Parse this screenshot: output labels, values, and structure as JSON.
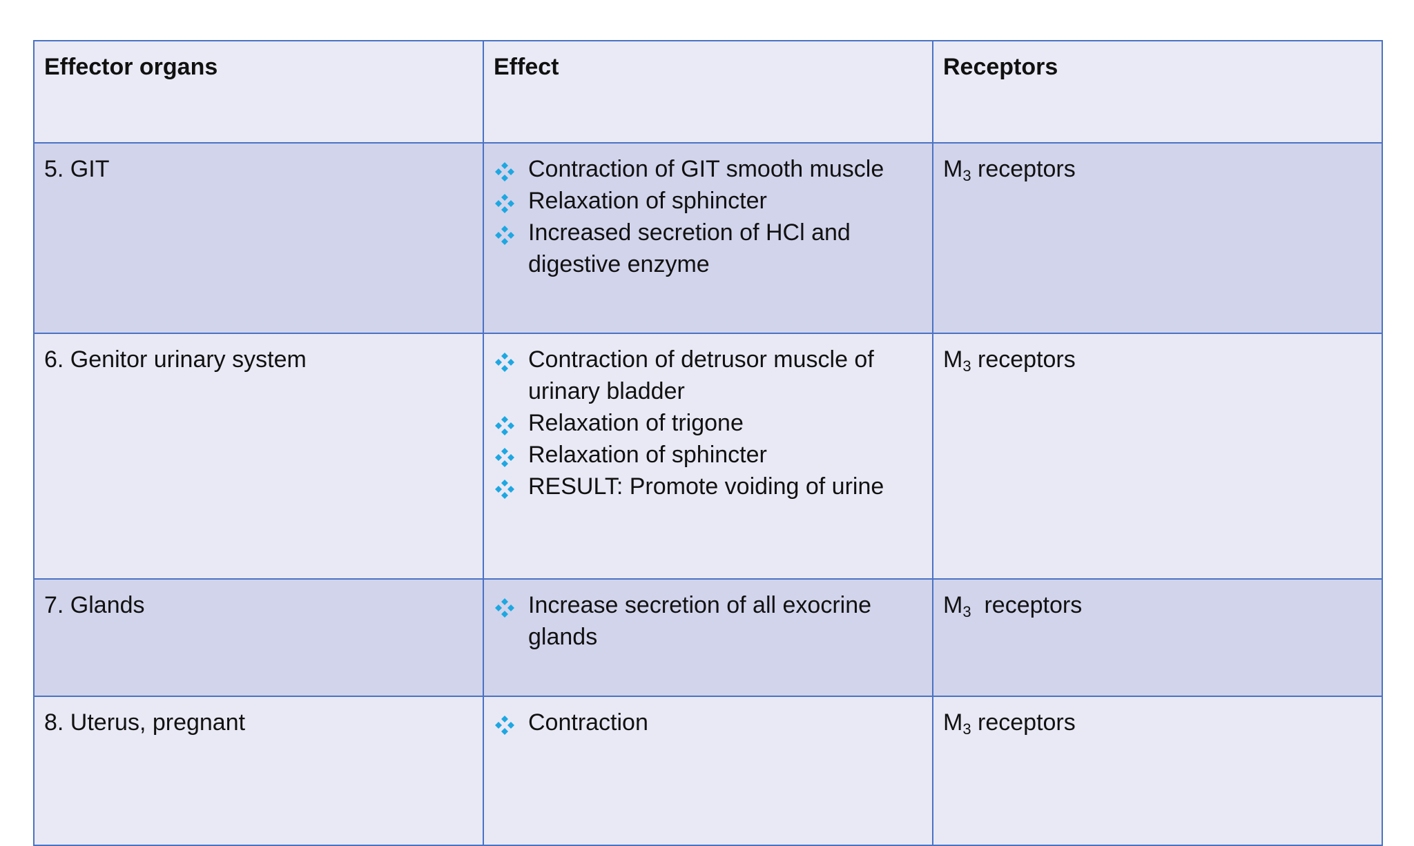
{
  "table": {
    "headers": [
      "Effector organs",
      "Effect",
      "Receptors"
    ],
    "rows": [
      {
        "organ": "5. GIT",
        "effects": [
          "Contraction of GIT smooth muscle",
          "Relaxation of sphincter",
          "Increased secretion of HCl and digestive enzyme"
        ],
        "receptor_letter": "M",
        "receptor_sub": "3",
        "receptor_text": " receptors"
      },
      {
        "organ": "6. Genitor urinary system",
        "effects": [
          "Contraction of detrusor muscle of urinary bladder",
          "Relaxation of trigone",
          "Relaxation of sphincter",
          "RESULT: Promote voiding of urine"
        ],
        "receptor_letter": "M",
        "receptor_sub": "3",
        "receptor_text": " receptors"
      },
      {
        "organ": "7. Glands",
        "effects": [
          "Increase secretion of all exocrine glands"
        ],
        "receptor_letter": "M",
        "receptor_sub": "3",
        "receptor_text": "  receptors"
      },
      {
        "organ": "8. Uterus, pregnant",
        "effects": [
          "Contraction"
        ],
        "receptor_letter": "M",
        "receptor_sub": "3",
        "receptor_text": " receptors"
      }
    ]
  },
  "style": {
    "border_color": "#4a72c4",
    "header_bg": "#e9eaf5",
    "row_dark_bg": "#d1d4eb",
    "row_light_bg": "#e9e9f5",
    "bullet_color": "#1ea7e1",
    "bullet_icon": "four-diamond-bullet-icon"
  }
}
